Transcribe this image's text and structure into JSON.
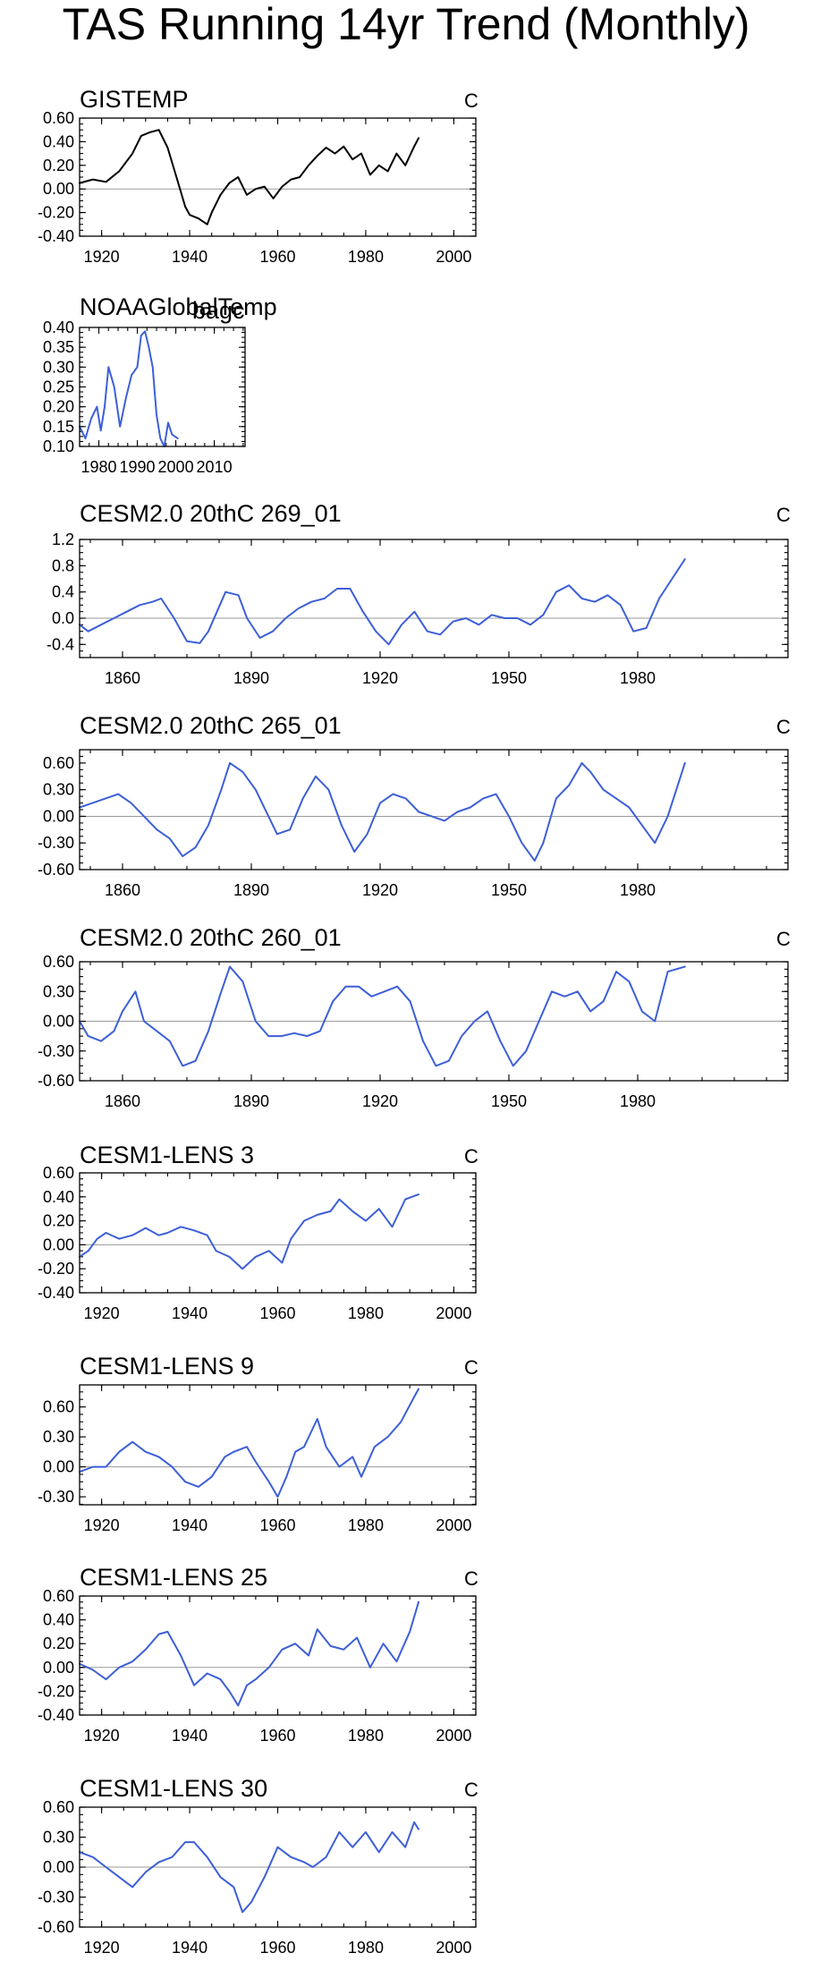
{
  "figure": {
    "title": "TAS Running 14yr Trend (Monthly)"
  },
  "colors": {
    "observed": "#000000",
    "model": "#3d5fd8",
    "zero": "#9a9a9a"
  },
  "chart_data": [
    {
      "type": "line",
      "title": "GISTEMP",
      "unit": "C",
      "xlim": [
        1915,
        2005
      ],
      "ylim": [
        -0.4,
        0.6
      ],
      "xticks": [
        1920,
        1940,
        1960,
        1980,
        2000
      ],
      "yticks": [
        -0.4,
        -0.2,
        0.0,
        0.2,
        0.4,
        0.6
      ],
      "ytick_labels": [
        "-0.40",
        "-0.20",
        "0.00",
        "0.20",
        "0.40",
        "0.60"
      ],
      "series": [
        {
          "name": "GISTEMP",
          "color": "#000000",
          "x": [
            1915,
            1918,
            1921,
            1924,
            1927,
            1929,
            1931,
            1933,
            1935,
            1937,
            1939,
            1940,
            1942,
            1944,
            1945,
            1947,
            1949,
            1951,
            1953,
            1955,
            1957,
            1959,
            1961,
            1963,
            1965,
            1967,
            1969,
            1971,
            1973,
            1975,
            1977,
            1979,
            1981,
            1983,
            1985,
            1987,
            1989,
            1991,
            1992
          ],
          "y": [
            0.05,
            0.08,
            0.06,
            0.15,
            0.3,
            0.45,
            0.48,
            0.5,
            0.35,
            0.1,
            -0.15,
            -0.22,
            -0.25,
            -0.3,
            -0.2,
            -0.05,
            0.05,
            0.1,
            -0.05,
            0.0,
            0.02,
            -0.08,
            0.02,
            0.08,
            0.1,
            0.2,
            0.28,
            0.35,
            0.3,
            0.36,
            0.25,
            0.3,
            0.12,
            0.2,
            0.15,
            0.3,
            0.2,
            0.36,
            0.43
          ]
        }
      ]
    },
    {
      "type": "line",
      "title": "NOAAGlobalTemp",
      "overlay_text": "bagc",
      "unit": "",
      "xlim": [
        1975,
        2018
      ],
      "ylim": [
        0.1,
        0.4
      ],
      "xticks": [
        1980,
        1990,
        2000,
        2010
      ],
      "yticks": [
        0.1,
        0.15,
        0.2,
        0.25,
        0.3,
        0.35,
        0.4
      ],
      "ytick_labels": [
        "0.10",
        "0.15",
        "0.20",
        "0.25",
        "0.30",
        "0.35",
        "0.40"
      ],
      "series": [
        {
          "name": "NOAAGlobalTemp",
          "color": "#3d5fd8",
          "x": [
            1975,
            1976.5,
            1978,
            1979.5,
            1980.5,
            1981.5,
            1982.5,
            1984,
            1985.5,
            1987,
            1988.5,
            1990,
            1991,
            1992,
            1993,
            1994,
            1995,
            1996,
            1997,
            1998,
            1999,
            2000.5
          ],
          "y": [
            0.15,
            0.12,
            0.17,
            0.2,
            0.14,
            0.2,
            0.3,
            0.25,
            0.15,
            0.22,
            0.28,
            0.3,
            0.38,
            0.39,
            0.35,
            0.3,
            0.18,
            0.12,
            0.1,
            0.16,
            0.13,
            0.12
          ]
        }
      ]
    },
    {
      "type": "line",
      "title": "CESM2.0 20thC 269_01",
      "unit": "C",
      "xlim": [
        1850,
        2015
      ],
      "ylim": [
        -0.6,
        1.2
      ],
      "xticks": [
        1860,
        1890,
        1920,
        1950,
        1980
      ],
      "yticks": [
        -0.4,
        0.0,
        0.4,
        0.8,
        1.2
      ],
      "ytick_labels": [
        "-0.4",
        "0.0",
        "0.4",
        "0.8",
        "1.2"
      ],
      "series": [
        {
          "name": "CESM2.0 20thC 269_01",
          "color": "#3d5fd8",
          "x": [
            1850,
            1852,
            1855,
            1858,
            1861,
            1864,
            1867,
            1869,
            1872,
            1875,
            1878,
            1880,
            1882,
            1884,
            1887,
            1889,
            1892,
            1895,
            1898,
            1901,
            1904,
            1907,
            1910,
            1913,
            1916,
            1919,
            1922,
            1925,
            1928,
            1931,
            1934,
            1937,
            1940,
            1943,
            1946,
            1949,
            1952,
            1955,
            1958,
            1961,
            1964,
            1967,
            1970,
            1973,
            1976,
            1979,
            1982,
            1985,
            1988,
            1991
          ],
          "y": [
            -0.1,
            -0.2,
            -0.1,
            0.0,
            0.1,
            0.2,
            0.25,
            0.3,
            0.0,
            -0.35,
            -0.38,
            -0.2,
            0.1,
            0.4,
            0.35,
            0.0,
            -0.3,
            -0.2,
            0.0,
            0.15,
            0.25,
            0.3,
            0.45,
            0.45,
            0.1,
            -0.2,
            -0.4,
            -0.1,
            0.1,
            -0.2,
            -0.25,
            -0.05,
            0.0,
            -0.1,
            0.05,
            0.0,
            0.0,
            -0.1,
            0.05,
            0.4,
            0.5,
            0.3,
            0.25,
            0.35,
            0.2,
            -0.2,
            -0.15,
            0.3,
            0.6,
            0.9
          ]
        }
      ]
    },
    {
      "type": "line",
      "title": "CESM2.0 20thC 265_01",
      "unit": "C",
      "xlim": [
        1850,
        2015
      ],
      "ylim": [
        -0.6,
        0.75
      ],
      "xticks": [
        1860,
        1890,
        1920,
        1950,
        1980
      ],
      "yticks": [
        -0.6,
        -0.3,
        0.0,
        0.3,
        0.6
      ],
      "ytick_labels": [
        "-0.60",
        "-0.30",
        "0.00",
        "0.30",
        "0.60"
      ],
      "series": [
        {
          "name": "CESM2.0 20thC 265_01",
          "color": "#3d5fd8",
          "x": [
            1850,
            1853,
            1856,
            1859,
            1862,
            1865,
            1868,
            1871,
            1874,
            1877,
            1880,
            1883,
            1885,
            1888,
            1891,
            1894,
            1896,
            1899,
            1902,
            1905,
            1908,
            1911,
            1914,
            1917,
            1920,
            1923,
            1926,
            1929,
            1932,
            1935,
            1938,
            1941,
            1944,
            1947,
            1950,
            1953,
            1956,
            1958,
            1961,
            1964,
            1967,
            1969,
            1972,
            1975,
            1978,
            1981,
            1984,
            1987,
            1991
          ],
          "y": [
            0.1,
            0.15,
            0.2,
            0.25,
            0.15,
            0.0,
            -0.15,
            -0.25,
            -0.45,
            -0.35,
            -0.1,
            0.3,
            0.6,
            0.5,
            0.3,
            0.0,
            -0.2,
            -0.15,
            0.2,
            0.45,
            0.3,
            -0.1,
            -0.4,
            -0.2,
            0.15,
            0.25,
            0.2,
            0.05,
            0.0,
            -0.05,
            0.05,
            0.1,
            0.2,
            0.25,
            0.0,
            -0.3,
            -0.5,
            -0.3,
            0.2,
            0.35,
            0.6,
            0.5,
            0.3,
            0.2,
            0.1,
            -0.1,
            -0.3,
            0.0,
            0.6
          ]
        }
      ]
    },
    {
      "type": "line",
      "title": "CESM2.0 20thC 260_01",
      "unit": "C",
      "xlim": [
        1850,
        2015
      ],
      "ylim": [
        -0.6,
        0.6
      ],
      "xticks": [
        1860,
        1890,
        1920,
        1950,
        1980
      ],
      "yticks": [
        -0.6,
        -0.3,
        0.0,
        0.3,
        0.6
      ],
      "ytick_labels": [
        "-0.60",
        "-0.30",
        "0.00",
        "0.30",
        "0.60"
      ],
      "series": [
        {
          "name": "CESM2.0 20thC 260_01",
          "color": "#3d5fd8",
          "x": [
            1850,
            1852,
            1855,
            1858,
            1860,
            1863,
            1865,
            1868,
            1871,
            1874,
            1877,
            1880,
            1883,
            1885,
            1888,
            1891,
            1894,
            1897,
            1900,
            1903,
            1906,
            1909,
            1912,
            1915,
            1918,
            1921,
            1924,
            1927,
            1930,
            1933,
            1936,
            1939,
            1942,
            1945,
            1948,
            1951,
            1954,
            1957,
            1960,
            1963,
            1966,
            1969,
            1972,
            1975,
            1978,
            1981,
            1984,
            1987,
            1991
          ],
          "y": [
            0.0,
            -0.15,
            -0.2,
            -0.1,
            0.1,
            0.3,
            0.0,
            -0.1,
            -0.2,
            -0.45,
            -0.4,
            -0.1,
            0.3,
            0.55,
            0.4,
            0.0,
            -0.15,
            -0.15,
            -0.12,
            -0.15,
            -0.1,
            0.2,
            0.35,
            0.35,
            0.25,
            0.3,
            0.35,
            0.2,
            -0.2,
            -0.45,
            -0.4,
            -0.15,
            0.0,
            0.1,
            -0.2,
            -0.45,
            -0.3,
            0.0,
            0.3,
            0.25,
            0.3,
            0.1,
            0.2,
            0.5,
            0.4,
            0.1,
            0.0,
            0.5,
            0.55
          ]
        }
      ]
    },
    {
      "type": "line",
      "title": "CESM1-LENS 3",
      "unit": "C",
      "xlim": [
        1915,
        2005
      ],
      "ylim": [
        -0.4,
        0.6
      ],
      "xticks": [
        1920,
        1940,
        1960,
        1980,
        2000
      ],
      "yticks": [
        -0.4,
        -0.2,
        0.0,
        0.2,
        0.4,
        0.6
      ],
      "ytick_labels": [
        "-0.40",
        "-0.20",
        "0.00",
        "0.20",
        "0.40",
        "0.60"
      ],
      "series": [
        {
          "name": "CESM1-LENS 3",
          "color": "#3d5fd8",
          "x": [
            1915,
            1917,
            1919,
            1921,
            1924,
            1927,
            1930,
            1933,
            1935,
            1938,
            1941,
            1944,
            1946,
            1949,
            1952,
            1955,
            1958,
            1961,
            1963,
            1966,
            1969,
            1972,
            1974,
            1977,
            1980,
            1983,
            1986,
            1989,
            1992
          ],
          "y": [
            -0.1,
            -0.05,
            0.05,
            0.1,
            0.05,
            0.08,
            0.14,
            0.08,
            0.1,
            0.15,
            0.12,
            0.08,
            -0.05,
            -0.1,
            -0.2,
            -0.1,
            -0.05,
            -0.15,
            0.05,
            0.2,
            0.25,
            0.28,
            0.38,
            0.28,
            0.2,
            0.3,
            0.15,
            0.38,
            0.42
          ]
        }
      ]
    },
    {
      "type": "line",
      "title": "CESM1-LENS 9",
      "unit": "C",
      "xlim": [
        1915,
        2005
      ],
      "ylim": [
        -0.38,
        0.82
      ],
      "xticks": [
        1920,
        1940,
        1960,
        1980,
        2000
      ],
      "yticks": [
        -0.3,
        0.0,
        0.3,
        0.6
      ],
      "ytick_labels": [
        "-0.30",
        "0.00",
        "0.30",
        "0.60"
      ],
      "series": [
        {
          "name": "CESM1-LENS 9",
          "color": "#3d5fd8",
          "x": [
            1915,
            1918,
            1921,
            1924,
            1927,
            1930,
            1933,
            1936,
            1939,
            1942,
            1945,
            1948,
            1950,
            1953,
            1955,
            1958,
            1960,
            1962,
            1964,
            1966,
            1969,
            1971,
            1974,
            1977,
            1979,
            1982,
            1985,
            1988,
            1991,
            1992
          ],
          "y": [
            -0.05,
            0.0,
            0.0,
            0.15,
            0.25,
            0.15,
            0.1,
            0.0,
            -0.15,
            -0.2,
            -0.1,
            0.1,
            0.15,
            0.2,
            0.05,
            -0.15,
            -0.3,
            -0.1,
            0.15,
            0.2,
            0.48,
            0.2,
            0.0,
            0.1,
            -0.1,
            0.2,
            0.3,
            0.45,
            0.7,
            0.78
          ]
        }
      ]
    },
    {
      "type": "line",
      "title": "CESM1-LENS 25",
      "unit": "C",
      "xlim": [
        1915,
        2005
      ],
      "ylim": [
        -0.4,
        0.6
      ],
      "xticks": [
        1920,
        1940,
        1960,
        1980,
        2000
      ],
      "yticks": [
        -0.4,
        -0.2,
        0.0,
        0.2,
        0.4,
        0.6
      ],
      "ytick_labels": [
        "-0.40",
        "-0.20",
        "0.00",
        "0.20",
        "0.40",
        "0.60"
      ],
      "series": [
        {
          "name": "CESM1-LENS 25",
          "color": "#3d5fd8",
          "x": [
            1915,
            1918,
            1921,
            1924,
            1927,
            1930,
            1933,
            1935,
            1938,
            1941,
            1944,
            1947,
            1949,
            1951,
            1953,
            1955,
            1958,
            1961,
            1964,
            1967,
            1969,
            1972,
            1975,
            1978,
            1981,
            1984,
            1987,
            1990,
            1992
          ],
          "y": [
            0.03,
            -0.02,
            -0.1,
            0.0,
            0.05,
            0.15,
            0.28,
            0.3,
            0.1,
            -0.15,
            -0.05,
            -0.1,
            -0.2,
            -0.32,
            -0.15,
            -0.1,
            0.0,
            0.15,
            0.2,
            0.1,
            0.32,
            0.18,
            0.15,
            0.25,
            0.0,
            0.2,
            0.05,
            0.3,
            0.55
          ]
        }
      ]
    },
    {
      "type": "line",
      "title": "CESM1-LENS 30",
      "unit": "C",
      "xlim": [
        1915,
        2005
      ],
      "ylim": [
        -0.6,
        0.6
      ],
      "xticks": [
        1920,
        1940,
        1960,
        1980,
        2000
      ],
      "yticks": [
        -0.6,
        -0.3,
        0.0,
        0.3,
        0.6
      ],
      "ytick_labels": [
        "-0.60",
        "-0.30",
        "0.00",
        "0.30",
        "0.60"
      ],
      "series": [
        {
          "name": "CESM1-LENS 30",
          "color": "#3d5fd8",
          "x": [
            1915,
            1918,
            1921,
            1924,
            1927,
            1930,
            1933,
            1936,
            1939,
            1941,
            1944,
            1947,
            1950,
            1952,
            1954,
            1957,
            1960,
            1963,
            1966,
            1968,
            1971,
            1974,
            1977,
            1980,
            1983,
            1986,
            1989,
            1991,
            1992
          ],
          "y": [
            0.15,
            0.1,
            0.0,
            -0.1,
            -0.2,
            -0.05,
            0.05,
            0.1,
            0.25,
            0.25,
            0.1,
            -0.1,
            -0.2,
            -0.45,
            -0.35,
            -0.1,
            0.2,
            0.1,
            0.05,
            0.0,
            0.1,
            0.35,
            0.2,
            0.35,
            0.15,
            0.35,
            0.2,
            0.45,
            0.38
          ]
        }
      ]
    }
  ]
}
